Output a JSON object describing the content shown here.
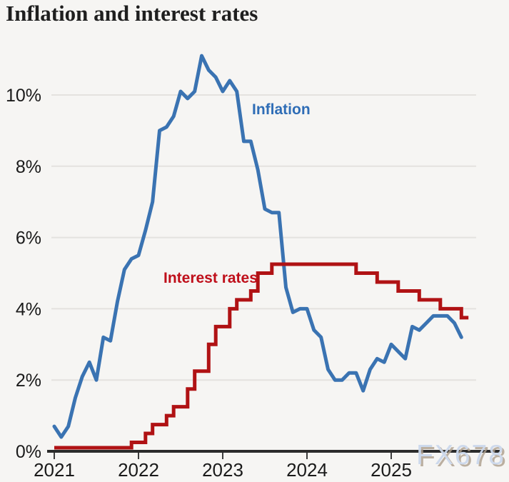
{
  "header": {
    "title": "Inflation and interest rates"
  },
  "watermark": {
    "text": "FX678"
  },
  "colors": {
    "background": "#f6f5f3",
    "grid": "#e4e2df",
    "axis": "#2b2b2b",
    "tick": "#3d3d3d",
    "tick_label": "#1a1a1a",
    "inflation_line": "#3a73b2",
    "inflation_label": "#2f6db6",
    "interest_line": "#b01214",
    "interest_label": "#bf0f1a"
  },
  "chart_data": {
    "type": "line",
    "title": "Inflation and interest rates",
    "xlabel": "",
    "ylabel": "",
    "unit": "%",
    "grid": true,
    "legend_position": "inline-labels",
    "ylim": [
      0,
      11.6
    ],
    "xlim": [
      "2021-01",
      "2025-12"
    ],
    "y_tick_values": [
      0,
      2,
      4,
      6,
      8,
      10
    ],
    "y_tick_labels": [
      "0%",
      "2%",
      "4%",
      "6%",
      "8%",
      "10%"
    ],
    "x_tick_values": [
      "2021-01",
      "2022-01",
      "2023-01",
      "2024-01",
      "2025-01"
    ],
    "x_tick_labels": [
      "2021",
      "2022",
      "2023",
      "2024",
      "2025"
    ],
    "series": [
      {
        "name": "Inflation",
        "label": "Inflation",
        "style": "line",
        "color": "#3a73b2",
        "label_color": "#2f6db6",
        "start": "2021-01",
        "frequency": "monthly",
        "values": [
          0.7,
          0.4,
          0.7,
          1.5,
          2.1,
          2.5,
          2.0,
          3.2,
          3.1,
          4.2,
          5.1,
          5.4,
          5.5,
          6.2,
          7.0,
          9.0,
          9.1,
          9.4,
          10.1,
          9.9,
          10.1,
          11.1,
          10.7,
          10.5,
          10.1,
          10.4,
          10.1,
          8.7,
          8.7,
          7.9,
          6.8,
          6.7,
          6.7,
          4.6,
          3.9,
          4.0,
          4.0,
          3.4,
          3.2,
          2.3,
          2.0,
          2.0,
          2.2,
          2.2,
          1.7,
          2.3,
          2.6,
          2.5,
          3.0,
          2.8,
          2.6,
          3.5,
          3.4,
          3.6,
          3.8,
          3.8,
          3.8,
          3.6,
          3.2
        ]
      },
      {
        "name": "Interest rates",
        "label": "Interest rates",
        "style": "step",
        "color": "#b01214",
        "label_color": "#bf0f1a",
        "changes": [
          [
            "2021-01",
            0.1
          ],
          [
            "2021-12",
            0.25
          ],
          [
            "2022-02",
            0.5
          ],
          [
            "2022-03",
            0.75
          ],
          [
            "2022-05",
            1.0
          ],
          [
            "2022-06",
            1.25
          ],
          [
            "2022-08",
            1.75
          ],
          [
            "2022-09",
            2.25
          ],
          [
            "2022-11",
            3.0
          ],
          [
            "2022-12",
            3.5
          ],
          [
            "2023-02",
            4.0
          ],
          [
            "2023-03",
            4.25
          ],
          [
            "2023-05",
            4.5
          ],
          [
            "2023-06",
            5.0
          ],
          [
            "2023-08",
            5.25
          ],
          [
            "2024-08",
            5.0
          ],
          [
            "2024-11",
            4.75
          ],
          [
            "2025-02",
            4.5
          ],
          [
            "2025-05",
            4.25
          ],
          [
            "2025-08",
            4.0
          ],
          [
            "2025-11",
            3.75
          ]
        ],
        "extend_to": "2025-12"
      }
    ]
  }
}
